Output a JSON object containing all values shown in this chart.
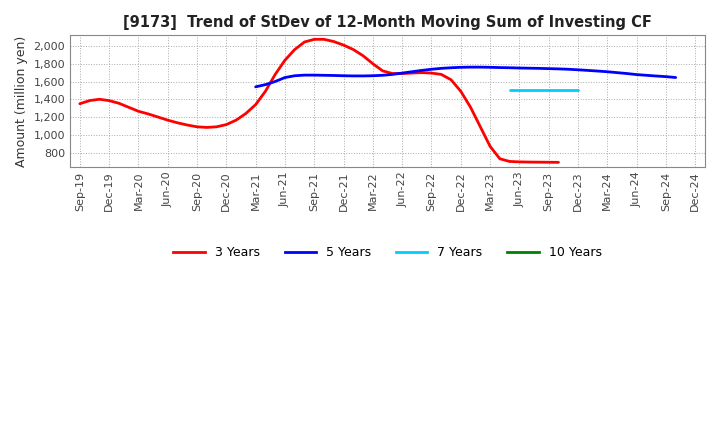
{
  "title": "[9173]  Trend of StDev of 12-Month Moving Sum of Investing CF",
  "ylabel": "Amount (million yen)",
  "background_color": "#ffffff",
  "grid_color": "#aaaaaa",
  "ylim": [
    640,
    2120
  ],
  "yticks": [
    800,
    1000,
    1200,
    1400,
    1600,
    1800,
    2000
  ],
  "series": {
    "3years": {
      "color": "#ff0000",
      "label": "3 Years",
      "x_indices": [
        0,
        1,
        2,
        3,
        4,
        5,
        6,
        7,
        8,
        9,
        10,
        11,
        12,
        13,
        14,
        15,
        16,
        17,
        18,
        19,
        20,
        21,
        22,
        23,
        24,
        25,
        26,
        27,
        28,
        29,
        30,
        31,
        32,
        33,
        34,
        35,
        36,
        37,
        38,
        39,
        40,
        41,
        42,
        43,
        44,
        45,
        46,
        47,
        48,
        49
      ],
      "y": [
        1350,
        1385,
        1400,
        1385,
        1355,
        1310,
        1265,
        1235,
        1200,
        1165,
        1135,
        1110,
        1090,
        1083,
        1090,
        1115,
        1165,
        1240,
        1340,
        1490,
        1680,
        1840,
        1960,
        2045,
        2075,
        2075,
        2050,
        2010,
        1960,
        1890,
        1800,
        1720,
        1690,
        1690,
        1695,
        1700,
        1695,
        1680,
        1620,
        1490,
        1310,
        1090,
        870,
        730,
        700,
        695,
        693,
        692,
        691,
        690
      ]
    },
    "5years": {
      "color": "#0000ff",
      "label": "5 Years",
      "x_indices": [
        18,
        19,
        20,
        21,
        22,
        23,
        24,
        25,
        26,
        27,
        28,
        29,
        30,
        31,
        32,
        33,
        34,
        35,
        36,
        37,
        38,
        39,
        40,
        41,
        42,
        43,
        44,
        45,
        46,
        47,
        48,
        49,
        50,
        51,
        52,
        53,
        54,
        55,
        56,
        57,
        58,
        59,
        60,
        61
      ],
      "y": [
        1540,
        1565,
        1600,
        1645,
        1665,
        1672,
        1672,
        1670,
        1668,
        1665,
        1663,
        1663,
        1665,
        1670,
        1680,
        1695,
        1710,
        1725,
        1738,
        1748,
        1755,
        1760,
        1762,
        1762,
        1760,
        1757,
        1755,
        1752,
        1750,
        1748,
        1745,
        1742,
        1738,
        1732,
        1725,
        1718,
        1710,
        1700,
        1690,
        1678,
        1670,
        1662,
        1655,
        1645
      ]
    },
    "7years": {
      "color": "#00ccff",
      "label": "7 Years",
      "x_indices": [
        44,
        45,
        46,
        47,
        48,
        49,
        50,
        51
      ],
      "y": [
        1510,
        1510,
        1510,
        1510,
        1510,
        1510,
        1510,
        1510
      ]
    },
    "10years": {
      "color": "#008000",
      "label": "10 Years",
      "x_indices": [],
      "y": []
    }
  },
  "xtick_labels": [
    "Sep-19",
    "Dec-19",
    "Mar-20",
    "Jun-20",
    "Sep-20",
    "Dec-20",
    "Mar-21",
    "Jun-21",
    "Sep-21",
    "Dec-21",
    "Mar-22",
    "Jun-22",
    "Sep-22",
    "Dec-22",
    "Mar-23",
    "Jun-23",
    "Sep-23",
    "Dec-23",
    "Mar-24",
    "Jun-24",
    "Sep-24",
    "Dec-24"
  ],
  "xtick_positions": [
    0,
    3,
    6,
    9,
    12,
    15,
    18,
    21,
    24,
    27,
    30,
    33,
    36,
    39,
    42,
    45,
    48,
    51,
    54,
    57,
    60,
    63
  ],
  "x_max": 63,
  "legend_labels": [
    "3 Years",
    "5 Years",
    "7 Years",
    "10 Years"
  ],
  "legend_colors": [
    "#ff0000",
    "#0000ff",
    "#00ccff",
    "#008000"
  ]
}
